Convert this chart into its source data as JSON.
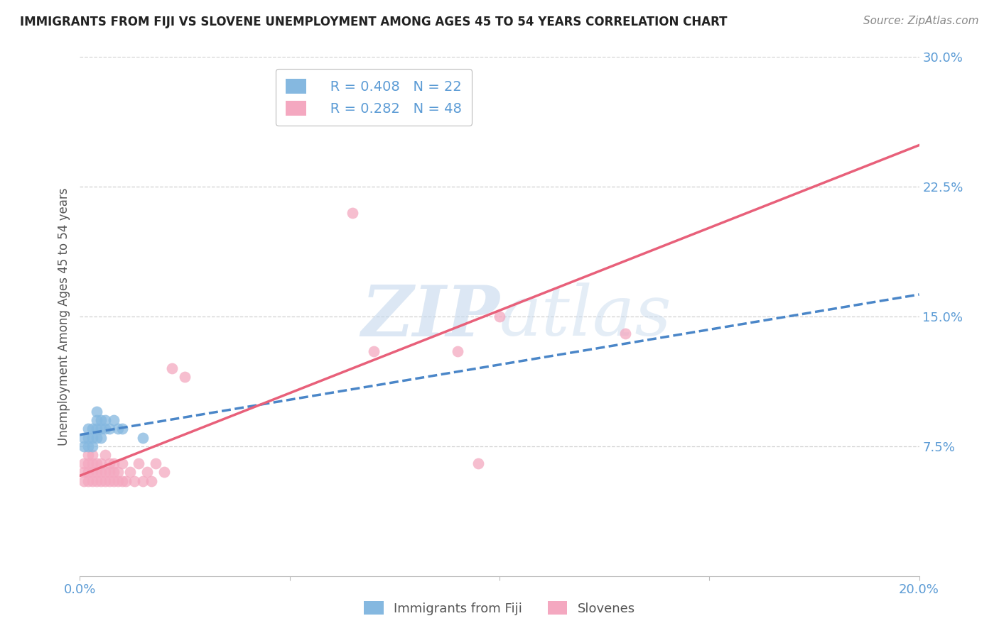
{
  "title": "IMMIGRANTS FROM FIJI VS SLOVENE UNEMPLOYMENT AMONG AGES 45 TO 54 YEARS CORRELATION CHART",
  "source": "Source: ZipAtlas.com",
  "ylabel": "Unemployment Among Ages 45 to 54 years",
  "xlim": [
    0,
    0.2
  ],
  "ylim": [
    0,
    0.3
  ],
  "xticks": [
    0.0,
    0.05,
    0.1,
    0.15,
    0.2
  ],
  "xtick_labels": [
    "0.0%",
    "",
    "",
    "",
    "20.0%"
  ],
  "yticks": [
    0.075,
    0.15,
    0.225,
    0.3
  ],
  "ytick_labels": [
    "7.5%",
    "15.0%",
    "22.5%",
    "30.0%"
  ],
  "legend_labels": [
    "Immigrants from Fiji",
    "Slovenes"
  ],
  "blue_color": "#85b8e0",
  "pink_color": "#f4a8c0",
  "blue_line_color": "#4a86c8",
  "pink_line_color": "#e8607a",
  "R_blue": 0.408,
  "N_blue": 22,
  "R_pink": 0.282,
  "N_pink": 48,
  "blue_points_x": [
    0.001,
    0.001,
    0.002,
    0.002,
    0.002,
    0.003,
    0.003,
    0.003,
    0.004,
    0.004,
    0.004,
    0.004,
    0.005,
    0.005,
    0.005,
    0.006,
    0.006,
    0.007,
    0.008,
    0.009,
    0.01,
    0.015
  ],
  "blue_points_y": [
    0.08,
    0.075,
    0.075,
    0.08,
    0.085,
    0.075,
    0.08,
    0.085,
    0.08,
    0.085,
    0.09,
    0.095,
    0.08,
    0.085,
    0.09,
    0.085,
    0.09,
    0.085,
    0.09,
    0.085,
    0.085,
    0.08
  ],
  "pink_points_x": [
    0.001,
    0.001,
    0.001,
    0.002,
    0.002,
    0.002,
    0.002,
    0.003,
    0.003,
    0.003,
    0.003,
    0.004,
    0.004,
    0.004,
    0.005,
    0.005,
    0.005,
    0.006,
    0.006,
    0.006,
    0.007,
    0.007,
    0.007,
    0.008,
    0.008,
    0.008,
    0.009,
    0.009,
    0.01,
    0.01,
    0.011,
    0.012,
    0.013,
    0.014,
    0.015,
    0.016,
    0.017,
    0.018,
    0.02,
    0.022,
    0.025,
    0.06,
    0.065,
    0.07,
    0.09,
    0.095,
    0.1,
    0.13
  ],
  "pink_points_y": [
    0.055,
    0.06,
    0.065,
    0.055,
    0.06,
    0.065,
    0.07,
    0.055,
    0.06,
    0.065,
    0.07,
    0.055,
    0.06,
    0.065,
    0.055,
    0.06,
    0.065,
    0.055,
    0.06,
    0.07,
    0.055,
    0.06,
    0.065,
    0.055,
    0.06,
    0.065,
    0.055,
    0.06,
    0.055,
    0.065,
    0.055,
    0.06,
    0.055,
    0.065,
    0.055,
    0.06,
    0.055,
    0.065,
    0.06,
    0.12,
    0.115,
    0.275,
    0.21,
    0.13,
    0.13,
    0.065,
    0.15,
    0.14
  ],
  "watermark_zip": "ZIP",
  "watermark_atlas": "atlas",
  "background_color": "#ffffff",
  "grid_color": "#d0d0d0",
  "title_fontsize": 12,
  "tick_color": "#5b9bd5",
  "tick_fontsize": 13,
  "ylabel_fontsize": 12,
  "source_fontsize": 11
}
